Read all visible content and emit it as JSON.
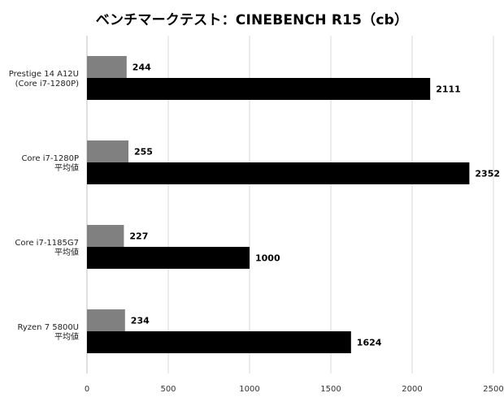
{
  "title": "ベンチマークテスト：CINEBENCH R15（cb）",
  "chart_data": {
    "type": "bar",
    "orientation": "horizontal",
    "title": "ベンチマークテスト：CINEBENCH R15（cb）",
    "categories": [
      [
        "Prestige 14 A12U",
        "(Core i7-1280P)"
      ],
      [
        "Core i7-1280P",
        "平均値"
      ],
      [
        "Core i7-1185G7",
        "平均値"
      ],
      [
        "Ryzen 7 5800U",
        "平均値"
      ]
    ],
    "series": [
      {
        "values": [
          244,
          255,
          227,
          234
        ],
        "color": "#808080"
      },
      {
        "values": [
          2111,
          2352,
          1000,
          1624
        ],
        "color": "#000000"
      }
    ],
    "xlim": [
      0,
      2500
    ],
    "xticks": [
      0,
      500,
      1000,
      1500,
      2000,
      2500
    ],
    "grid": true,
    "legend": "none",
    "xlabel": "",
    "ylabel": ""
  }
}
